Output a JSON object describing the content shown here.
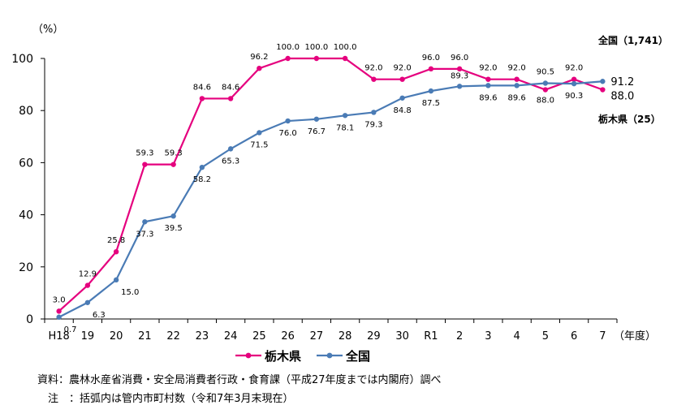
{
  "chart_data": {
    "type": "line",
    "y_unit": "（%）",
    "x_unit": "（年度）",
    "ylim": [
      0,
      100
    ],
    "yticks": [
      0,
      20,
      40,
      60,
      80,
      100
    ],
    "grid": false,
    "categories": [
      "H18",
      "19",
      "20",
      "21",
      "22",
      "23",
      "24",
      "25",
      "26",
      "27",
      "28",
      "29",
      "30",
      "R1",
      "2",
      "3",
      "4",
      "5",
      "6",
      "7"
    ],
    "series": [
      {
        "name": "栃木県",
        "color": "#e5007e",
        "values": [
          3.0,
          12.9,
          25.8,
          59.3,
          59.3,
          84.6,
          84.6,
          96.2,
          100.0,
          100.0,
          100.0,
          92.0,
          92.0,
          96.0,
          96.0,
          92.0,
          92.0,
          88.0,
          92.0,
          88.0
        ],
        "labels": [
          "3.0",
          "12.9",
          "25.8",
          "59.3",
          "59.3",
          "84.6",
          "84.6",
          "96.2",
          "100.0",
          "100.0",
          "100.0",
          "92.0",
          "92.0",
          "96.0",
          "96.0",
          "92.0",
          "92.0",
          "88.0",
          "92.0",
          "88.0"
        ],
        "end_name": "栃木県（25）"
      },
      {
        "name": "全国",
        "color": "#4a7bb5",
        "values": [
          0.7,
          6.3,
          15.0,
          37.3,
          39.5,
          58.2,
          65.3,
          71.5,
          76.0,
          76.7,
          78.1,
          79.3,
          84.8,
          87.5,
          89.3,
          89.6,
          89.6,
          90.5,
          90.3,
          91.2
        ],
        "labels": [
          "0.7",
          "6.3",
          "15.0",
          "37.3",
          "39.5",
          "58.2",
          "65.3",
          "71.5",
          "76.0",
          "76.7",
          "78.1",
          "79.3",
          "84.8",
          "87.5",
          "89.3",
          "89.6",
          "89.6",
          "90.5",
          "90.3",
          "91.2"
        ],
        "end_name": "全国（1,741）"
      }
    ],
    "legend": [
      {
        "name": "栃木県",
        "color": "#e5007e"
      },
      {
        "name": "全国",
        "color": "#4a7bb5"
      }
    ]
  },
  "notes": {
    "source": "資料：農林水産省消費・安全局消費者行政・食育課（平成27年度までは内閣府）調べ",
    "note": "　注　：括弧内は管内市町村数（令和7年3月末現在）"
  }
}
